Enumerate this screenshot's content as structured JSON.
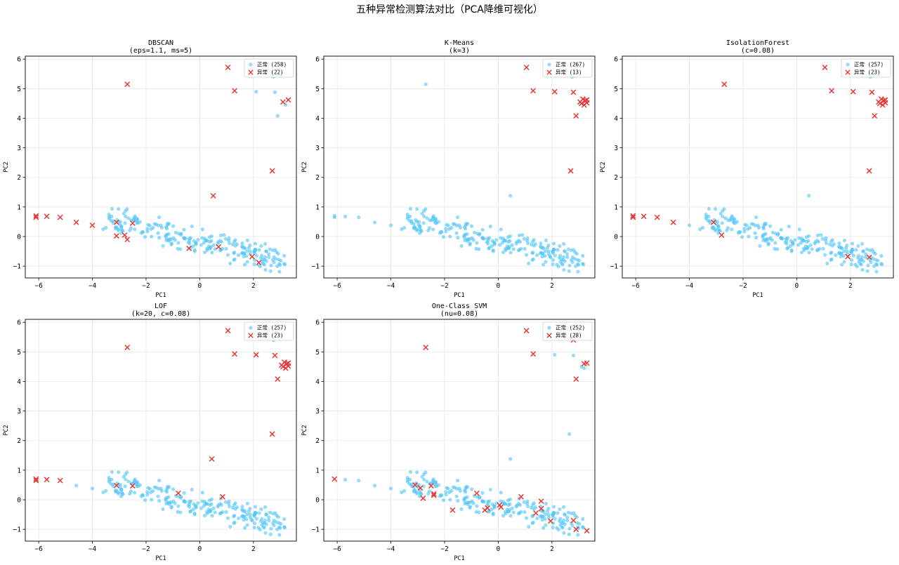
{
  "figure_title": "五种异常检测算法对比（PCA降维可视化）",
  "colors": {
    "normal": "#4fc3f7",
    "anomaly": "#e53935",
    "grid": "#e6e6e6"
  },
  "chart_data": [
    {
      "type": "scatter",
      "title_line1": "DBSCAN",
      "title_line2": "(eps=1.1, ms=5)",
      "xlabel": "PC1",
      "ylabel": "PC2",
      "xlim": [
        -6.5,
        3.6
      ],
      "ylim": [
        -1.4,
        6.1
      ],
      "xticks": [
        -6,
        -4,
        -2,
        0,
        2
      ],
      "yticks": [
        -1,
        0,
        1,
        2,
        3,
        4,
        5,
        6
      ],
      "grid": true,
      "legend_position": "top-right",
      "series": [
        {
          "name": "正常 (258)",
          "kind": "normal",
          "marker": "circle"
        },
        {
          "name": "异常 (22)",
          "kind": "anomaly",
          "marker": "x",
          "points": [
            [
              -6.1,
              0.7
            ],
            [
              -6.1,
              0.65
            ],
            [
              -5.7,
              0.68
            ],
            [
              -5.2,
              0.65
            ],
            [
              -4.6,
              0.48
            ],
            [
              -4.0,
              0.38
            ],
            [
              -3.1,
              0.48
            ],
            [
              -3.1,
              0.02
            ],
            [
              -2.8,
              0.05
            ],
            [
              -2.7,
              -0.1
            ],
            [
              -2.5,
              0.45
            ],
            [
              -0.4,
              -0.4
            ],
            [
              0.7,
              -0.35
            ],
            [
              1.95,
              -0.68
            ],
            [
              2.2,
              -0.88
            ],
            [
              2.7,
              2.22
            ],
            [
              0.5,
              1.38
            ],
            [
              -2.7,
              5.15
            ],
            [
              1.05,
              5.72
            ],
            [
              1.3,
              4.93
            ],
            [
              3.3,
              4.62
            ],
            [
              3.1,
              4.55
            ]
          ]
        }
      ]
    },
    {
      "type": "scatter",
      "title_line1": "K-Means",
      "title_line2": "(k=3)",
      "xlabel": "PC1",
      "ylabel": "PC2",
      "xlim": [
        -6.5,
        3.6
      ],
      "ylim": [
        -1.4,
        6.1
      ],
      "xticks": [
        -6,
        -4,
        -2,
        0,
        2
      ],
      "yticks": [
        -1,
        0,
        1,
        2,
        3,
        4,
        5,
        6
      ],
      "grid": true,
      "legend_position": "top-right",
      "series": [
        {
          "name": "正常 (267)",
          "kind": "normal",
          "marker": "circle"
        },
        {
          "name": "异常 (13)",
          "kind": "anomaly",
          "marker": "x",
          "points": [
            [
              1.05,
              5.72
            ],
            [
              1.3,
              4.93
            ],
            [
              2.1,
              4.9
            ],
            [
              2.8,
              4.88
            ],
            [
              2.7,
              2.22
            ],
            [
              2.9,
              4.08
            ],
            [
              3.1,
              4.5
            ],
            [
              3.2,
              4.45
            ],
            [
              3.25,
              4.6
            ],
            [
              3.3,
              4.62
            ],
            [
              3.05,
              4.55
            ],
            [
              3.15,
              4.65
            ],
            [
              3.3,
              4.52
            ]
          ]
        },
        {
          "name": "",
          "kind": "normal",
          "marker": "circle",
          "extra_points": [
            [
              -2.7,
              5.15
            ],
            [
              0.45,
              1.38
            ]
          ]
        }
      ]
    },
    {
      "type": "scatter",
      "title_line1": "IsolationForest",
      "title_line2": "(c=0.08)",
      "xlabel": "PC1",
      "ylabel": "PC2",
      "xlim": [
        -6.5,
        3.6
      ],
      "ylim": [
        -1.4,
        6.1
      ],
      "xticks": [
        -6,
        -4,
        -2,
        0,
        2
      ],
      "yticks": [
        -1,
        0,
        1,
        2,
        3,
        4,
        5,
        6
      ],
      "grid": true,
      "legend_position": "top-right",
      "series": [
        {
          "name": "正常 (257)",
          "kind": "normal",
          "marker": "circle"
        },
        {
          "name": "异常 (23)",
          "kind": "anomaly",
          "marker": "x",
          "points": [
            [
              -6.1,
              0.7
            ],
            [
              -6.1,
              0.65
            ],
            [
              -5.7,
              0.68
            ],
            [
              -5.2,
              0.65
            ],
            [
              -4.6,
              0.48
            ],
            [
              -3.1,
              0.48
            ],
            [
              -2.8,
              0.05
            ],
            [
              -2.7,
              5.15
            ],
            [
              1.05,
              5.72
            ],
            [
              1.3,
              4.93
            ],
            [
              2.1,
              4.9
            ],
            [
              2.8,
              4.88
            ],
            [
              2.7,
              2.22
            ],
            [
              2.9,
              4.08
            ],
            [
              3.1,
              4.5
            ],
            [
              3.2,
              4.45
            ],
            [
              3.25,
              4.6
            ],
            [
              3.3,
              4.62
            ],
            [
              3.05,
              4.55
            ],
            [
              3.15,
              4.65
            ],
            [
              3.3,
              4.52
            ],
            [
              1.9,
              -0.68
            ],
            [
              2.7,
              -0.7
            ]
          ]
        },
        {
          "name": "",
          "kind": "normal",
          "marker": "circle",
          "extra_points": [
            [
              0.45,
              1.38
            ]
          ]
        }
      ]
    },
    {
      "type": "scatter",
      "title_line1": "LOF",
      "title_line2": "(k=20, c=0.08)",
      "xlabel": "PC1",
      "ylabel": "PC2",
      "xlim": [
        -6.5,
        3.6
      ],
      "ylim": [
        -1.4,
        6.1
      ],
      "xticks": [
        -6,
        -4,
        -2,
        0,
        2
      ],
      "yticks": [
        -1,
        0,
        1,
        2,
        3,
        4,
        5,
        6
      ],
      "grid": true,
      "legend_position": "top-right",
      "series": [
        {
          "name": "正常 (257)",
          "kind": "normal",
          "marker": "circle"
        },
        {
          "name": "异常 (23)",
          "kind": "anomaly",
          "marker": "x",
          "points": [
            [
              -6.1,
              0.7
            ],
            [
              -6.1,
              0.65
            ],
            [
              -5.7,
              0.68
            ],
            [
              -5.2,
              0.65
            ],
            [
              -3.1,
              0.48
            ],
            [
              -2.5,
              0.47
            ],
            [
              -0.8,
              0.22
            ],
            [
              0.85,
              0.1
            ],
            [
              -2.7,
              5.15
            ],
            [
              1.05,
              5.72
            ],
            [
              1.3,
              4.93
            ],
            [
              2.1,
              4.9
            ],
            [
              2.8,
              4.88
            ],
            [
              2.7,
              2.22
            ],
            [
              2.9,
              4.08
            ],
            [
              3.1,
              4.5
            ],
            [
              3.2,
              4.45
            ],
            [
              3.25,
              4.6
            ],
            [
              3.3,
              4.62
            ],
            [
              3.05,
              4.55
            ],
            [
              3.15,
              4.65
            ],
            [
              3.3,
              4.52
            ],
            [
              0.45,
              1.38
            ]
          ]
        }
      ]
    },
    {
      "type": "scatter",
      "title_line1": "One-Class SVM",
      "title_line2": "(nu=0.08)",
      "xlabel": "PC1",
      "ylabel": "PC2",
      "xlim": [
        -6.5,
        3.6
      ],
      "ylim": [
        -1.4,
        6.1
      ],
      "xticks": [
        -6,
        -4,
        -2,
        0,
        2
      ],
      "yticks": [
        -1,
        0,
        1,
        2,
        3,
        4,
        5,
        6
      ],
      "grid": true,
      "legend_position": "top-right",
      "series": [
        {
          "name": "正常 (252)",
          "kind": "normal",
          "marker": "circle"
        },
        {
          "name": "异常 (28)",
          "kind": "anomaly",
          "marker": "x",
          "points": [
            [
              -6.1,
              0.7
            ],
            [
              -3.1,
              0.5
            ],
            [
              -2.9,
              0.4
            ],
            [
              -2.8,
              0.05
            ],
            [
              -2.5,
              0.47
            ],
            [
              -2.4,
              0.2
            ],
            [
              -2.4,
              0.15
            ],
            [
              -1.7,
              -0.35
            ],
            [
              -0.8,
              0.22
            ],
            [
              -0.5,
              -0.35
            ],
            [
              -0.4,
              -0.28
            ],
            [
              0.05,
              -0.18
            ],
            [
              0.1,
              -0.25
            ],
            [
              0.85,
              0.1
            ],
            [
              1.4,
              -0.45
            ],
            [
              1.6,
              -0.05
            ],
            [
              1.6,
              -0.3
            ],
            [
              1.95,
              -0.72
            ],
            [
              2.8,
              -0.7
            ],
            [
              2.9,
              -1.0
            ],
            [
              3.3,
              -1.05
            ],
            [
              -2.7,
              5.15
            ],
            [
              1.05,
              5.72
            ],
            [
              1.3,
              4.93
            ],
            [
              2.9,
              4.08
            ],
            [
              3.2,
              4.6
            ],
            [
              3.3,
              4.62
            ],
            [
              2.8,
              5.4
            ]
          ]
        },
        {
          "name": "",
          "kind": "normal",
          "marker": "circle",
          "extra_points": [
            [
              0.45,
              1.38
            ],
            [
              2.65,
              2.22
            ]
          ]
        }
      ]
    }
  ]
}
